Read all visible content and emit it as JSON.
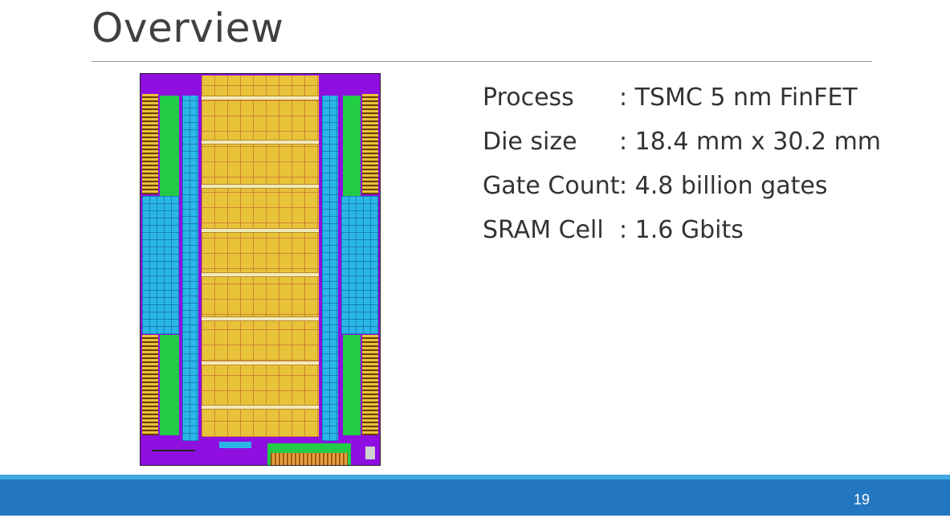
{
  "slide": {
    "title": "Overview",
    "page_number": "19"
  },
  "specs": [
    {
      "label": "Process",
      "value": ": TSMC 5 nm FinFET"
    },
    {
      "label": "Die size",
      "value": ": 18.4 mm x 30.2 mm"
    },
    {
      "label": "Gate Count",
      "value": ": 4.8 billion gates"
    },
    {
      "label": "SRAM Cell",
      "value": ": 1.6 Gbits"
    }
  ],
  "colors": {
    "title": "#404040",
    "rule": "#9a9a9a",
    "footer": "#2376c0",
    "footer_stripe": "#41a9e0",
    "die_purple": "#8e0fe0",
    "die_yellow": "#e8c33a",
    "die_green": "#22cc44",
    "die_cyan": "#2bb6e8"
  }
}
